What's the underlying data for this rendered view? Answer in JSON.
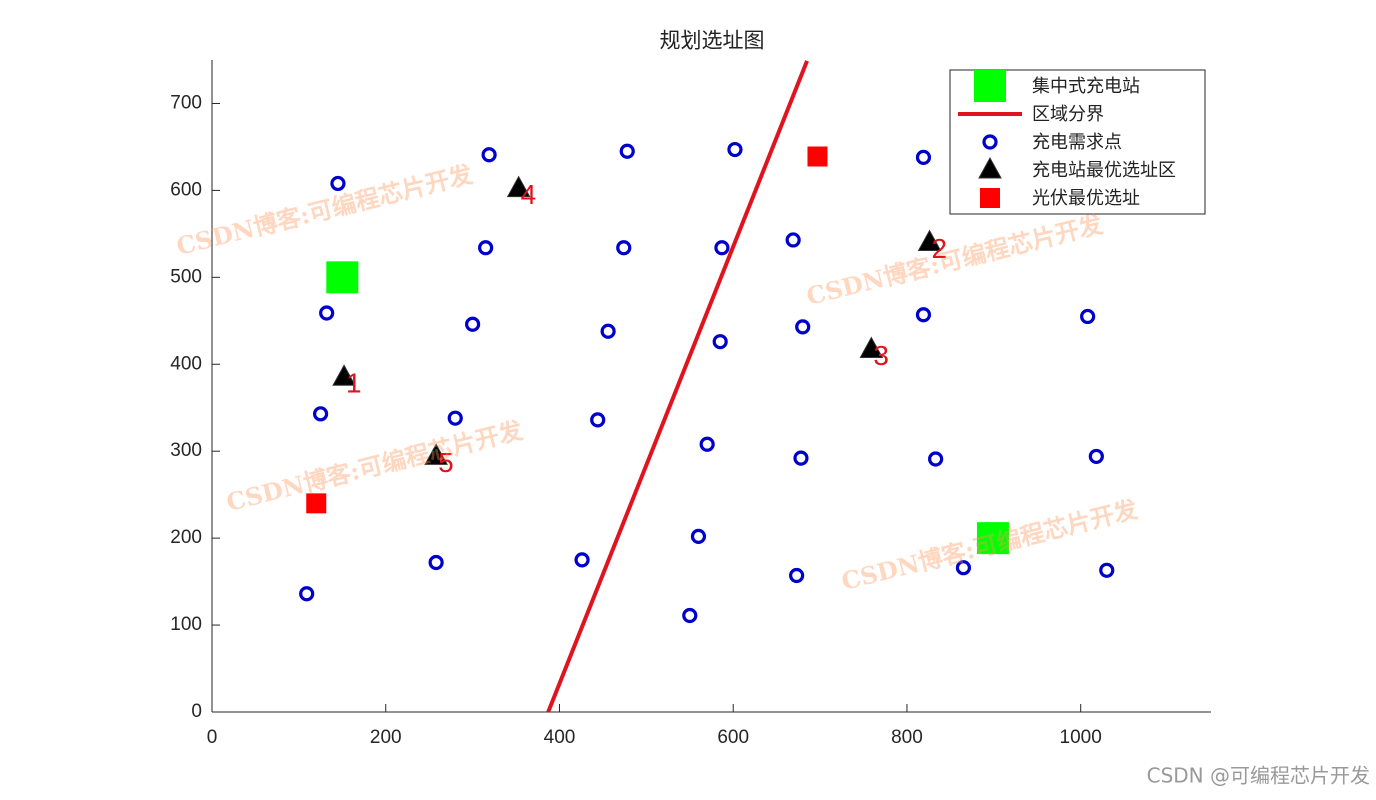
{
  "chart_data": {
    "type": "scatter",
    "title": "规划选址图",
    "xlim": [
      0,
      1150
    ],
    "ylim": [
      0,
      750
    ],
    "xticks": [
      0,
      200,
      400,
      600,
      800,
      1000
    ],
    "yticks": [
      0,
      100,
      200,
      300,
      400,
      500,
      600,
      700
    ],
    "grid": false,
    "legend": "upper right",
    "watermark": "CSDN博客:可编程芯片开发",
    "footer": "CSDN @可编程芯片开发",
    "series": [
      {
        "name": "集中式充电站",
        "color": "#00ff00",
        "marker": "square-large",
        "x": [
          150,
          899
        ],
        "values": [
          500,
          200
        ]
      },
      {
        "name": "区域分界",
        "color": "#e0141e",
        "marker": "line",
        "x": [
          387,
          685
        ],
        "values": [
          0,
          749
        ]
      },
      {
        "name": "充电需求点",
        "color": "#0000cc",
        "marker": "circle",
        "x": [
          145,
          319,
          478,
          602,
          819,
          315,
          474,
          587,
          669,
          132,
          300,
          456,
          585,
          680,
          819,
          1008,
          125,
          280,
          444,
          570,
          678,
          833,
          1018,
          109,
          258,
          426,
          560,
          673,
          865,
          1030,
          550
        ],
        "values": [
          608,
          641,
          645,
          647,
          638,
          534,
          534,
          534,
          543,
          459,
          446,
          438,
          426,
          443,
          457,
          455,
          343,
          338,
          336,
          308,
          292,
          291,
          294,
          136,
          172,
          175,
          202,
          157,
          166,
          163,
          111
        ]
      },
      {
        "name": "充电站最优选址区",
        "color": "#000000",
        "marker": "triangle",
        "label_color": "#e0141e",
        "x": [
          152,
          826,
          759,
          353,
          258
        ],
        "values": [
          385,
          540,
          417,
          602,
          294
        ],
        "labels": [
          "1",
          "2",
          "3",
          "4",
          "5"
        ]
      },
      {
        "name": "光伏最优选址",
        "color": "#ff0000",
        "marker": "square",
        "x": [
          120,
          697
        ],
        "values": [
          240,
          639
        ]
      }
    ]
  }
}
